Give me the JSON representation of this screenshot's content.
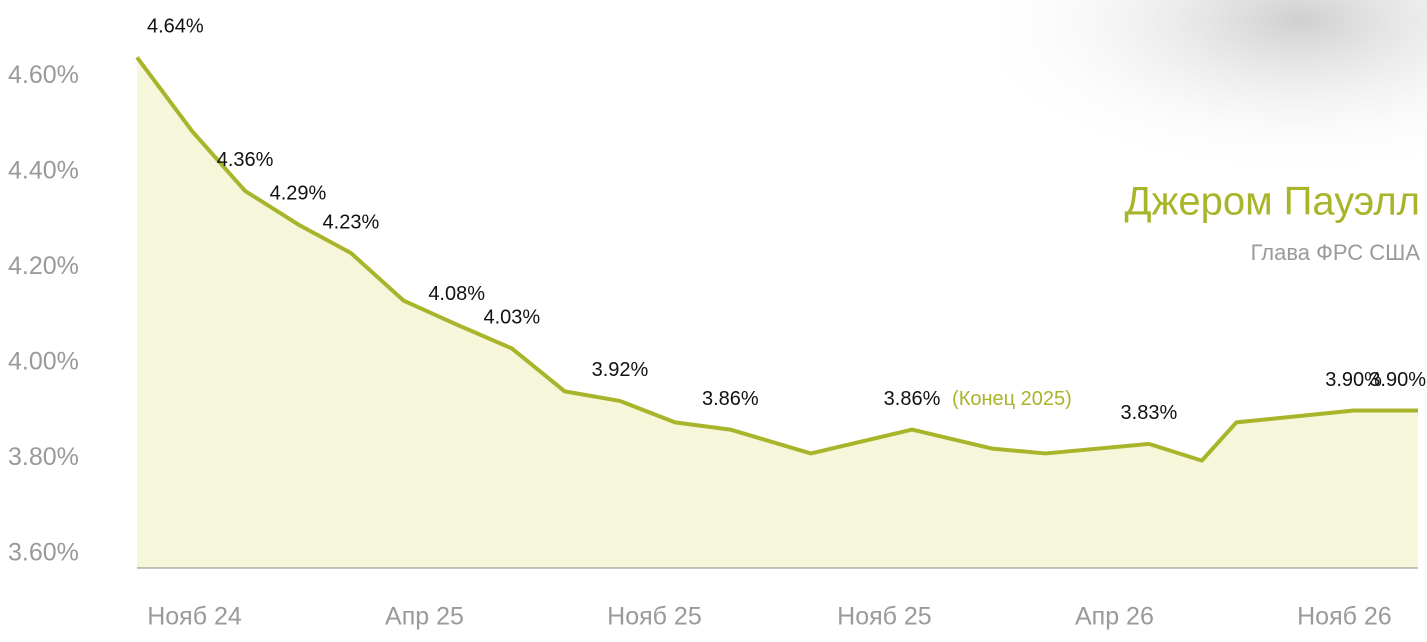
{
  "chart_data": {
    "type": "area",
    "title": "Джером Пауэлл",
    "subtitle": "Глава ФРС США",
    "annotation": "(Конец 2025)",
    "x": [
      0.75,
      0.99,
      1.22,
      1.45,
      1.68,
      1.91,
      2.14,
      2.38,
      2.61,
      2.85,
      3.09,
      3.33,
      3.68,
      4.12,
      4.47,
      4.7,
      5.15,
      5.38,
      5.53,
      6.04,
      6.32
    ],
    "values": [
      4.64,
      4.485,
      4.36,
      4.29,
      4.23,
      4.13,
      4.08,
      4.03,
      3.94,
      3.92,
      3.875,
      3.86,
      3.81,
      3.86,
      3.82,
      3.81,
      3.83,
      3.795,
      3.875,
      3.9,
      3.9
    ],
    "value_labels": [
      "4.64%",
      null,
      "4.36%",
      "4.29%",
      "4.23%",
      null,
      "4.08%",
      "4.03%",
      null,
      "3.92%",
      null,
      "3.86%",
      null,
      "3.86%",
      null,
      null,
      "3.83%",
      null,
      null,
      "3.90%",
      "3.90%"
    ],
    "color": "#a8b52b",
    "fill": "#f5f6da",
    "xlim": [
      0.75,
      6.32
    ],
    "xticks": [
      {
        "value": 1,
        "label": "Нояб 24"
      },
      {
        "value": 2,
        "label": "Апр 25"
      },
      {
        "value": 3,
        "label": "Нояб 25"
      },
      {
        "value": 4,
        "label": "Нояб 25"
      },
      {
        "value": 5,
        "label": "Апр 26"
      },
      {
        "value": 6,
        "label": "Нояб 26"
      }
    ],
    "ylim": [
      3.57,
      4.76
    ],
    "yticks": [
      {
        "value": 3.6,
        "label": "3.60%"
      },
      {
        "value": 3.8,
        "label": "3.80%"
      },
      {
        "value": 4.0,
        "label": "4.00%"
      },
      {
        "value": 4.2,
        "label": "4.20%"
      },
      {
        "value": 4.4,
        "label": "4.40%"
      },
      {
        "value": 4.6,
        "label": "4.60%"
      }
    ]
  }
}
